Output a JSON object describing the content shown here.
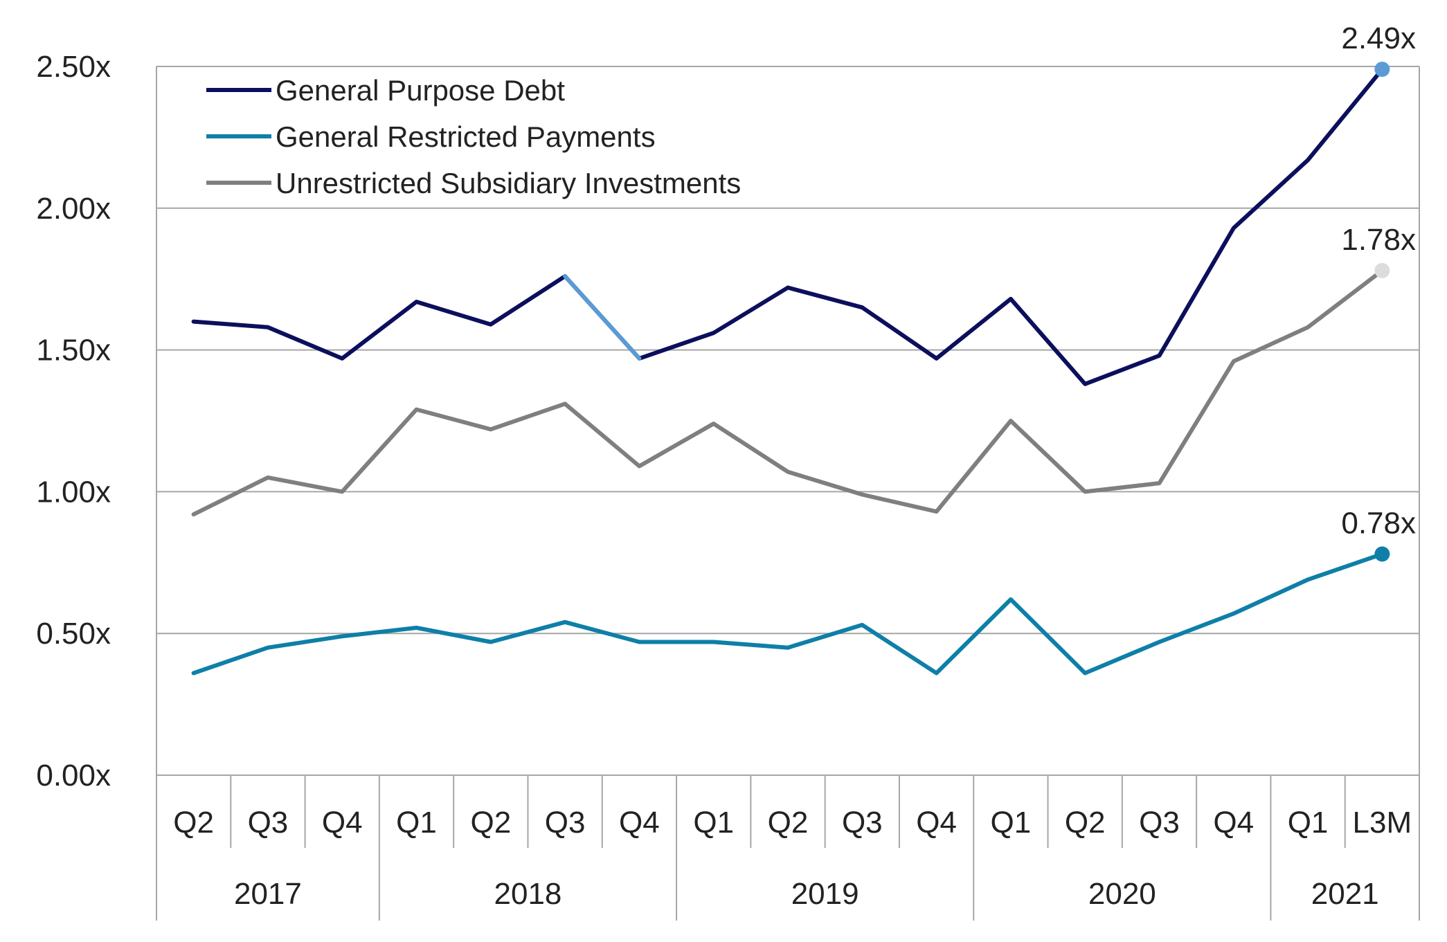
{
  "chart_data": {
    "type": "line",
    "categories": [
      "Q2",
      "Q3",
      "Q4",
      "Q1",
      "Q2",
      "Q3",
      "Q4",
      "Q1",
      "Q2",
      "Q3",
      "Q4",
      "Q1",
      "Q2",
      "Q3",
      "Q4",
      "Q1",
      "L3M"
    ],
    "year_groups": [
      {
        "label": "2017",
        "count": 3
      },
      {
        "label": "2018",
        "count": 4
      },
      {
        "label": "2019",
        "count": 4
      },
      {
        "label": "2020",
        "count": 4
      },
      {
        "label": "2021",
        "count": 2
      }
    ],
    "y_ticks": [
      "0.00x",
      "0.50x",
      "1.00x",
      "1.50x",
      "2.00x",
      "2.50x"
    ],
    "ylim": [
      0,
      2.5
    ],
    "grid": true,
    "legend_position": "top-left",
    "series": [
      {
        "name": "General Purpose Debt",
        "color": "#0b0f5c",
        "highlight_color": "#5b9bd5",
        "highlight_segment": [
          5,
          6
        ],
        "values": [
          1.6,
          1.58,
          1.47,
          1.67,
          1.59,
          1.76,
          1.47,
          1.56,
          1.72,
          1.65,
          1.47,
          1.68,
          1.38,
          1.48,
          1.93,
          2.17,
          2.49
        ],
        "end_label": "2.49x",
        "end_marker_color": "#5b9bd5"
      },
      {
        "name": "General Restricted Payments",
        "color": "#0e7fa8",
        "values": [
          0.36,
          0.45,
          0.49,
          0.52,
          0.47,
          0.54,
          0.47,
          0.47,
          0.45,
          0.53,
          0.36,
          0.62,
          0.36,
          0.47,
          0.57,
          0.69,
          0.78
        ],
        "end_label": "0.78x",
        "end_marker_color": "#0e7fa8"
      },
      {
        "name": "Unrestricted Subsidiary Investments",
        "color": "#7f7f7f",
        "values": [
          0.92,
          1.05,
          1.0,
          1.29,
          1.22,
          1.31,
          1.09,
          1.24,
          1.07,
          0.99,
          0.93,
          1.25,
          1.0,
          1.03,
          1.46,
          1.58,
          1.78
        ],
        "end_label": "1.78x",
        "end_marker_color": "#dcdcdc"
      }
    ]
  }
}
